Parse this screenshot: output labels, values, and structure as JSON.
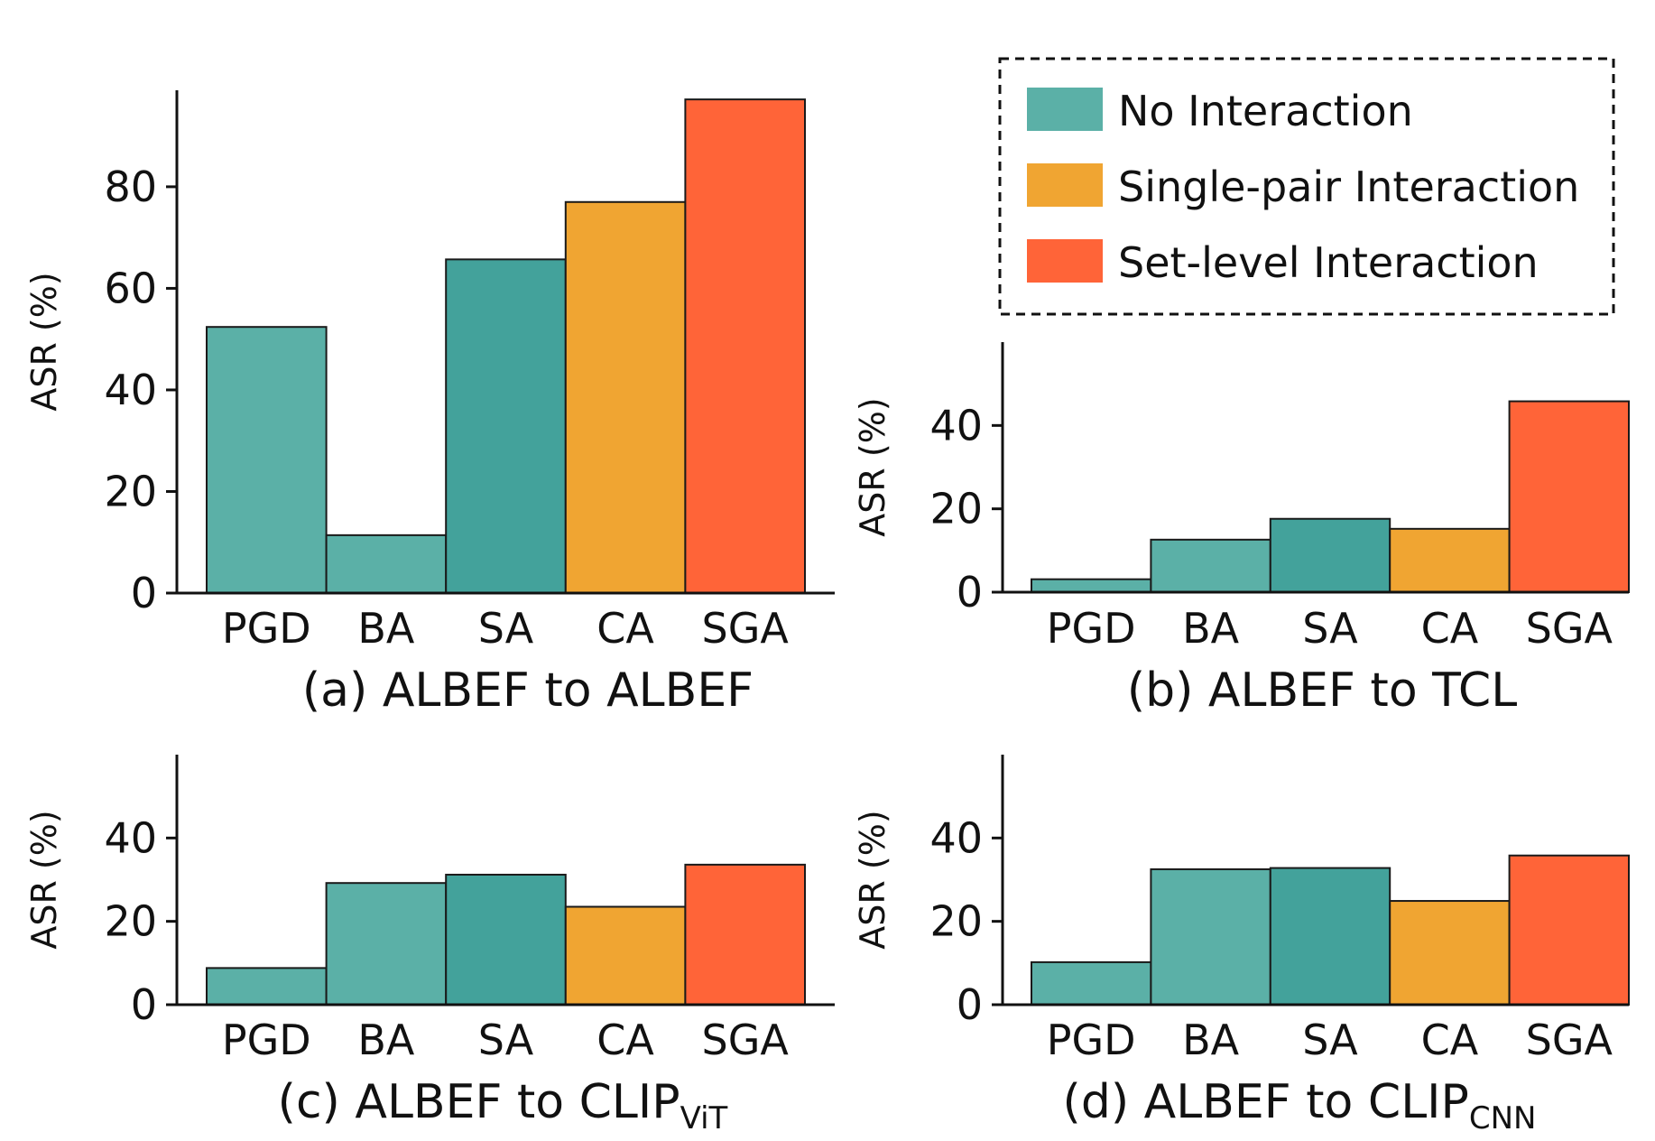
{
  "legend": {
    "items": [
      {
        "label": "No Interaction",
        "color": "#5bb0a7"
      },
      {
        "label": "Single-pair Interaction",
        "color": "#f0a532"
      },
      {
        "label": "Set-level Interaction",
        "color": "#ff6438"
      }
    ]
  },
  "chart_data": [
    {
      "type": "bar",
      "title": "(a) ALBEF to ALBEF",
      "title_main": "(a) ALBEF to ALBEF",
      "title_sub": "",
      "xlabel": "",
      "ylabel": "ASR (%)",
      "ylim": [
        0,
        99
      ],
      "yticks": [
        0,
        20,
        40,
        60,
        80
      ],
      "categories": [
        "PGD",
        "BA",
        "SA",
        "CA",
        "SGA"
      ],
      "values": [
        52.4,
        11.4,
        65.7,
        77.0,
        97.2
      ],
      "colors": [
        "#5bb0a7",
        "#5bb0a7",
        "#43a29b",
        "#f0a532",
        "#ff6438"
      ]
    },
    {
      "type": "bar",
      "title": "(b) ALBEF to TCL",
      "title_main": "(b) ALBEF to TCL",
      "title_sub": "",
      "xlabel": "",
      "ylabel": "ASR (%)",
      "ylim": [
        0,
        60
      ],
      "yticks": [
        0,
        20,
        40
      ],
      "categories": [
        "PGD",
        "BA",
        "SA",
        "CA",
        "SGA"
      ],
      "values": [
        3.1,
        12.6,
        17.6,
        15.2,
        45.8
      ],
      "colors": [
        "#5bb0a7",
        "#5bb0a7",
        "#43a29b",
        "#f0a532",
        "#ff6438"
      ]
    },
    {
      "type": "bar",
      "title": "(c) ALBEF to CLIPViT",
      "title_main": "(c) ALBEF to CLIP",
      "title_sub": "ViT",
      "xlabel": "",
      "ylabel": "ASR (%)",
      "ylim": [
        0,
        60
      ],
      "yticks": [
        0,
        20,
        40
      ],
      "categories": [
        "PGD",
        "BA",
        "SA",
        "CA",
        "SGA"
      ],
      "values": [
        8.8,
        29.2,
        31.2,
        23.5,
        33.6
      ],
      "colors": [
        "#5bb0a7",
        "#5bb0a7",
        "#43a29b",
        "#f0a532",
        "#ff6438"
      ]
    },
    {
      "type": "bar",
      "title": "(d) ALBEF to CLIPCNN",
      "title_main": "(d) ALBEF to CLIP",
      "title_sub": "CNN",
      "xlabel": "",
      "ylabel": "ASR (%)",
      "ylim": [
        0,
        60
      ],
      "yticks": [
        0,
        20,
        40
      ],
      "categories": [
        "PGD",
        "BA",
        "SA",
        "CA",
        "SGA"
      ],
      "values": [
        10.2,
        32.5,
        32.8,
        24.9,
        35.8
      ],
      "colors": [
        "#5bb0a7",
        "#5bb0a7",
        "#43a29b",
        "#f0a532",
        "#ff6438"
      ]
    }
  ]
}
